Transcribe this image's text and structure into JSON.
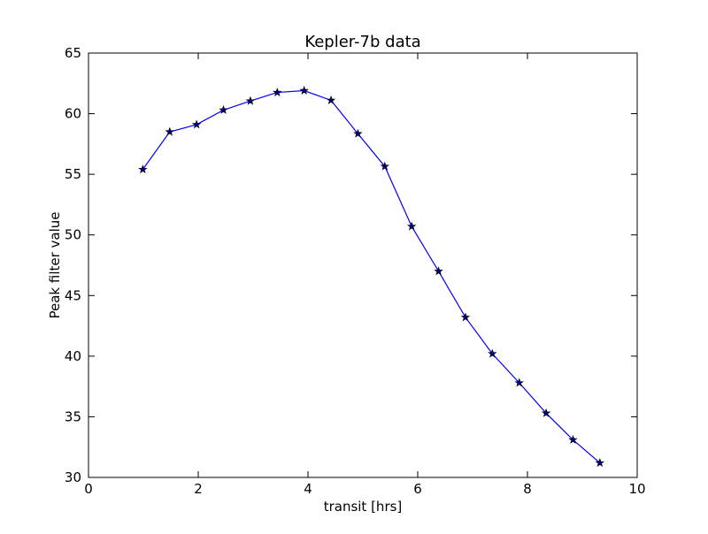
{
  "chart_data": {
    "type": "line",
    "title": "Kepler-7b data",
    "xlabel": "transit [hrs]",
    "ylabel": "Peak filter value",
    "xlim": [
      0,
      10
    ],
    "ylim": [
      30,
      65
    ],
    "xticks": [
      0,
      2,
      4,
      6,
      8,
      10
    ],
    "yticks": [
      30,
      35,
      40,
      45,
      50,
      55,
      60,
      65
    ],
    "grid": false,
    "marker": "star",
    "line_color": "#0000ff",
    "marker_color": "#000080",
    "series": [
      {
        "x": [
          0.99,
          1.48,
          1.97,
          2.46,
          2.95,
          3.44,
          3.93,
          4.42,
          4.91,
          5.4,
          5.89,
          6.38,
          6.87,
          7.36,
          7.85,
          8.34,
          8.83,
          9.32
        ],
        "y": [
          55.4,
          58.5,
          59.1,
          60.3,
          61.05,
          61.75,
          61.9,
          61.1,
          58.35,
          55.65,
          50.7,
          47.0,
          43.2,
          40.2,
          37.8,
          35.3,
          33.1,
          31.2
        ]
      }
    ]
  }
}
